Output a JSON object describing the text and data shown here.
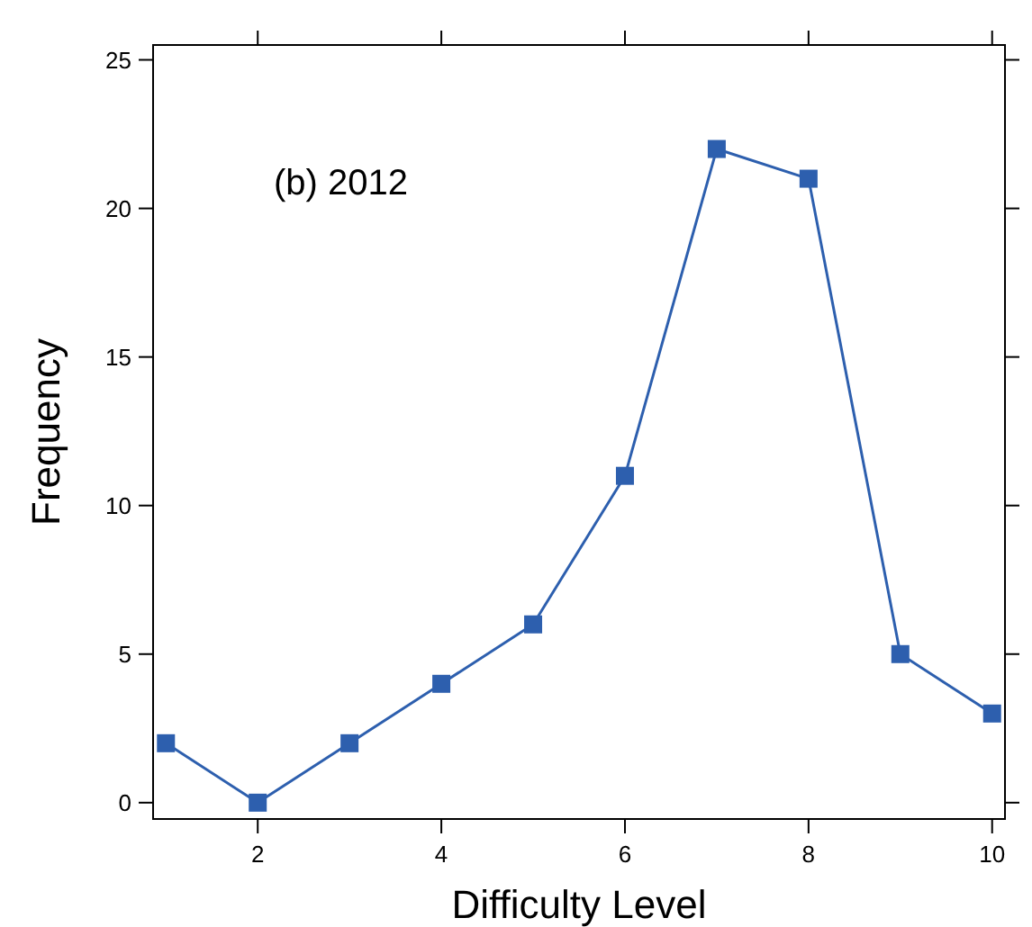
{
  "chart_data": {
    "type": "line",
    "xlabel": "Difficulty Level",
    "ylabel": "Frequency",
    "annotations": [
      "(b) 2012"
    ],
    "x": [
      1,
      2,
      3,
      4,
      5,
      6,
      7,
      8,
      9,
      10
    ],
    "series": [
      {
        "color": "#2d5fae",
        "values": [
          2,
          0,
          2,
          4,
          6,
          11,
          22,
          21,
          5,
          3
        ]
      }
    ],
    "xlim": [
      0.86,
      10.14
    ],
    "ylim": [
      -0.55,
      25.5
    ],
    "xticks": [
      2,
      4,
      6,
      8,
      10
    ],
    "yticks": [
      0,
      5,
      10,
      15,
      20,
      25
    ],
    "marker": "square",
    "line_style": "solid",
    "grid": false
  }
}
